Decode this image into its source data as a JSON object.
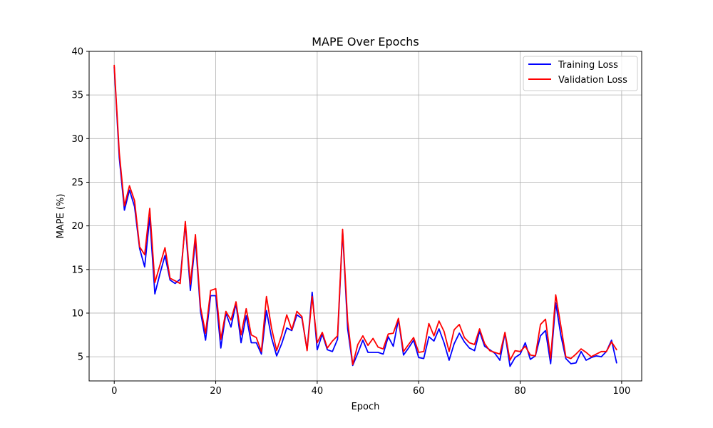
{
  "chart_data": {
    "type": "line",
    "title": "MAPE Over Epochs",
    "xlabel": "Epoch",
    "ylabel": "MAPE (%)",
    "xlim": [
      -4.95,
      103.95
    ],
    "ylim": [
      2.23,
      40.0
    ],
    "xticks": [
      0,
      20,
      40,
      60,
      80,
      100
    ],
    "yticks": [
      5,
      10,
      15,
      20,
      25,
      30,
      35,
      40
    ],
    "grid": true,
    "legend_position": "top-right",
    "series": [
      {
        "name": "Training Loss",
        "color": "#0000ff",
        "x": [
          0,
          1,
          2,
          3,
          4,
          5,
          6,
          7,
          8,
          9,
          10,
          11,
          12,
          13,
          14,
          15,
          16,
          17,
          18,
          19,
          20,
          21,
          22,
          23,
          24,
          25,
          26,
          27,
          28,
          29,
          30,
          31,
          32,
          33,
          34,
          35,
          36,
          37,
          38,
          39,
          40,
          41,
          42,
          43,
          44,
          45,
          46,
          47,
          48,
          49,
          50,
          51,
          52,
          53,
          54,
          55,
          56,
          57,
          58,
          59,
          60,
          61,
          62,
          63,
          64,
          65,
          66,
          67,
          68,
          69,
          70,
          71,
          72,
          73,
          74,
          75,
          76,
          77,
          78,
          79,
          80,
          81,
          82,
          83,
          84,
          85,
          86,
          87,
          88,
          89,
          90,
          91,
          92,
          93,
          94,
          95,
          96,
          97,
          98,
          99
        ],
        "values": [
          38.2,
          27.8,
          21.8,
          24.1,
          22.2,
          17.4,
          15.3,
          21.0,
          12.2,
          14.5,
          16.6,
          13.8,
          13.4,
          13.9,
          20.2,
          12.6,
          18.4,
          10.2,
          6.9,
          12.0,
          12.0,
          6.0,
          10.0,
          8.4,
          11.1,
          6.6,
          9.7,
          6.6,
          6.6,
          5.3,
          10.3,
          7.2,
          5.1,
          6.5,
          8.3,
          8.0,
          9.8,
          9.4,
          5.8,
          12.4,
          5.8,
          7.6,
          5.8,
          5.6,
          7.0,
          19.4,
          8.2,
          4.0,
          5.4,
          6.9,
          5.5,
          5.5,
          5.5,
          5.3,
          7.3,
          6.2,
          9.3,
          5.2,
          6.0,
          6.9,
          4.9,
          4.8,
          7.3,
          6.8,
          8.2,
          6.6,
          4.6,
          6.5,
          7.7,
          6.7,
          6.0,
          5.7,
          7.9,
          6.2,
          5.8,
          5.4,
          4.6,
          7.7,
          3.9,
          4.9,
          5.3,
          6.6,
          4.7,
          5.1,
          7.4,
          8.0,
          4.2,
          11.2,
          7.5,
          4.8,
          4.2,
          4.3,
          5.6,
          4.6,
          4.9,
          5.1,
          5.0,
          5.6,
          6.9,
          4.3
        ]
      },
      {
        "name": "Validation Loss",
        "color": "#ff0000",
        "x": [
          0,
          1,
          2,
          3,
          4,
          5,
          6,
          7,
          8,
          9,
          10,
          11,
          12,
          13,
          14,
          15,
          16,
          17,
          18,
          19,
          20,
          21,
          22,
          23,
          24,
          25,
          26,
          27,
          28,
          29,
          30,
          31,
          32,
          33,
          34,
          35,
          36,
          37,
          38,
          39,
          40,
          41,
          42,
          43,
          44,
          45,
          46,
          47,
          48,
          49,
          50,
          51,
          52,
          53,
          54,
          55,
          56,
          57,
          58,
          59,
          60,
          61,
          62,
          63,
          64,
          65,
          66,
          67,
          68,
          69,
          70,
          71,
          72,
          73,
          74,
          75,
          76,
          77,
          78,
          79,
          80,
          81,
          82,
          83,
          84,
          85,
          86,
          87,
          88,
          89,
          90,
          91,
          92,
          93,
          94,
          95,
          96,
          97,
          98,
          99
        ],
        "values": [
          38.4,
          28.4,
          22.3,
          24.6,
          22.9,
          17.6,
          16.7,
          22.0,
          13.5,
          15.5,
          17.5,
          14.0,
          13.7,
          13.4,
          20.5,
          13.3,
          19.0,
          10.7,
          7.7,
          12.6,
          12.8,
          7.0,
          10.2,
          9.2,
          11.3,
          7.5,
          10.5,
          7.5,
          7.2,
          5.6,
          11.9,
          8.3,
          5.7,
          7.5,
          9.8,
          8.1,
          10.2,
          9.6,
          5.7,
          11.9,
          6.6,
          7.8,
          6.0,
          6.8,
          7.4,
          19.6,
          9.1,
          4.1,
          6.4,
          7.4,
          6.3,
          7.1,
          6.1,
          5.9,
          7.6,
          7.7,
          9.4,
          5.6,
          6.4,
          7.2,
          5.5,
          5.6,
          8.8,
          7.4,
          9.1,
          7.9,
          5.6,
          8.1,
          8.7,
          7.2,
          6.6,
          6.4,
          8.2,
          6.5,
          5.7,
          5.5,
          5.3,
          7.8,
          4.6,
          5.7,
          5.6,
          6.2,
          5.2,
          5.1,
          8.7,
          9.3,
          4.8,
          12.1,
          8.6,
          5.0,
          4.8,
          5.3,
          5.9,
          5.5,
          5.0,
          5.3,
          5.6,
          5.6,
          6.7,
          5.8
        ]
      }
    ]
  }
}
